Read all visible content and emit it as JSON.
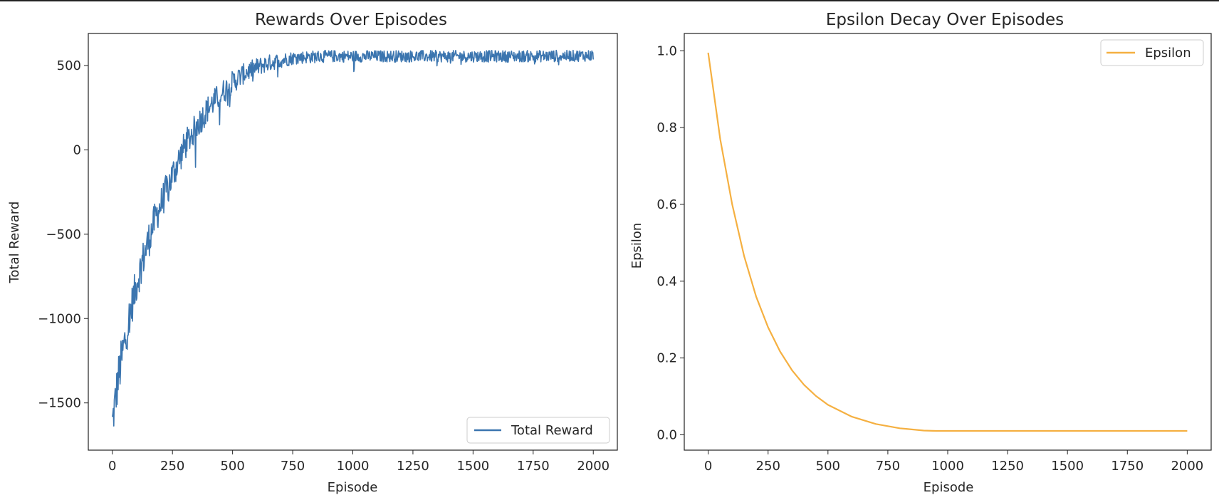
{
  "chart_data": [
    {
      "type": "line",
      "title": "Rewards Over Episodes",
      "xlabel": "Episode",
      "ylabel": "Total Reward",
      "xlim": [
        -100,
        2100
      ],
      "ylim": [
        -1780,
        690
      ],
      "xticks": [
        0,
        250,
        500,
        750,
        1000,
        1250,
        1500,
        1750,
        2000
      ],
      "yticks": [
        -1500,
        -1000,
        -500,
        0,
        500
      ],
      "ytick_labels": [
        "−1500",
        "−1000",
        "−500",
        "0",
        "500"
      ],
      "legend_position": "lower-right",
      "grid": false,
      "series": [
        {
          "name": "Total Reward",
          "color": "#3b75af",
          "x": [
            0,
            25,
            50,
            75,
            100,
            125,
            150,
            175,
            200,
            250,
            300,
            350,
            400,
            450,
            500,
            550,
            600,
            650,
            700,
            750,
            800,
            900,
            1000,
            1100,
            1250,
            1500,
            1750,
            2000
          ],
          "y": [
            -1620,
            -1350,
            -1150,
            -960,
            -800,
            -660,
            -540,
            -420,
            -330,
            -150,
            20,
            140,
            250,
            330,
            400,
            455,
            490,
            515,
            530,
            545,
            550,
            555,
            555,
            555,
            555,
            555,
            555,
            560
          ],
          "noise": [
            120,
            140,
            130,
            120,
            110,
            110,
            110,
            100,
            100,
            100,
            90,
            85,
            80,
            75,
            70,
            60,
            55,
            50,
            45,
            40,
            38,
            36,
            35,
            35,
            35,
            35,
            35,
            35
          ]
        }
      ]
    },
    {
      "type": "line",
      "title": "Epsilon Decay Over Episodes",
      "xlabel": "Episode",
      "ylabel": "Epsilon",
      "xlim": [
        -100,
        2100
      ],
      "ylim": [
        -0.04,
        1.045
      ],
      "xticks": [
        0,
        250,
        500,
        750,
        1000,
        1250,
        1500,
        1750,
        2000
      ],
      "yticks": [
        0.0,
        0.2,
        0.4,
        0.6,
        0.8,
        1.0
      ],
      "ytick_labels": [
        "0.0",
        "0.2",
        "0.4",
        "0.6",
        "0.8",
        "1.0"
      ],
      "legend_position": "upper-right",
      "grid": false,
      "series": [
        {
          "name": "Epsilon",
          "color": "#f5b041",
          "x": [
            0,
            50,
            100,
            150,
            200,
            250,
            300,
            350,
            400,
            450,
            500,
            600,
            700,
            800,
            900,
            950,
            1000,
            1250,
            1500,
            1750,
            2000
          ],
          "y": [
            0.995,
            0.77,
            0.6,
            0.465,
            0.36,
            0.28,
            0.217,
            0.168,
            0.13,
            0.101,
            0.078,
            0.047,
            0.028,
            0.017,
            0.011,
            0.01,
            0.01,
            0.01,
            0.01,
            0.01,
            0.01
          ]
        }
      ]
    }
  ]
}
